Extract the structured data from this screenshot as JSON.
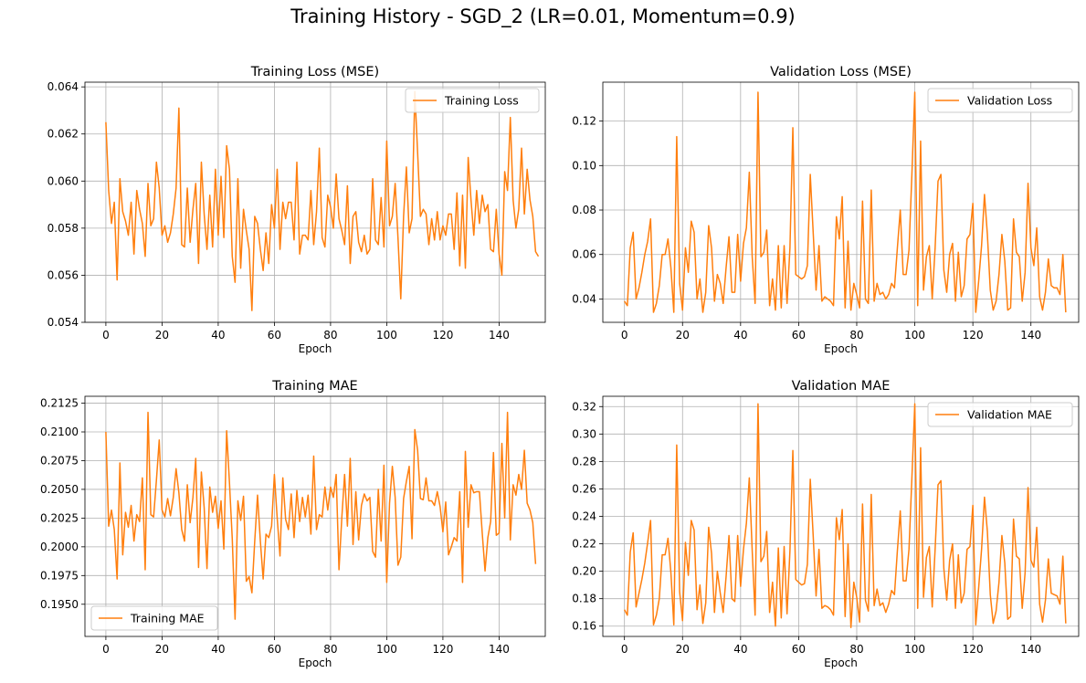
{
  "figure": {
    "suptitle": "Training History - SGD_2 (LR=0.01, Momentum=0.9)"
  },
  "colors": {
    "series": "#ff7f0e",
    "grid": "#b0b0b0",
    "axis": "#000000"
  },
  "chart_data": [
    {
      "type": "line",
      "title": "Training Loss (MSE)",
      "xlabel": "Epoch",
      "ylabel": "",
      "xlim": [
        -7.45,
        156.45
      ],
      "ylim": [
        0.054,
        0.0642
      ],
      "xticks": [
        0,
        20,
        40,
        60,
        80,
        100,
        120,
        140
      ],
      "yticks": [
        0.054,
        0.056,
        0.058,
        0.06,
        0.062,
        0.064
      ],
      "ytick_labels": [
        "0.054",
        "0.056",
        "0.058",
        "0.060",
        "0.062",
        "0.064"
      ],
      "grid": true,
      "legend": "upper right",
      "series": [
        {
          "name": "Training Loss",
          "values": [
            0.0625,
            0.0596,
            0.0582,
            0.0591,
            0.0558,
            0.0601,
            0.0587,
            0.0583,
            0.0577,
            0.0591,
            0.0569,
            0.0596,
            0.0588,
            0.0582,
            0.0568,
            0.0599,
            0.0581,
            0.0584,
            0.0608,
            0.0597,
            0.0577,
            0.0581,
            0.0574,
            0.0578,
            0.0586,
            0.0597,
            0.0631,
            0.0573,
            0.0572,
            0.0597,
            0.0574,
            0.0588,
            0.0599,
            0.0565,
            0.0608,
            0.0586,
            0.0571,
            0.0594,
            0.0572,
            0.0605,
            0.0577,
            0.0602,
            0.0576,
            0.0615,
            0.0605,
            0.0568,
            0.0557,
            0.0601,
            0.0563,
            0.0588,
            0.0579,
            0.0571,
            0.0545,
            0.0585,
            0.0582,
            0.0571,
            0.0562,
            0.0578,
            0.0565,
            0.059,
            0.058,
            0.0605,
            0.0571,
            0.0591,
            0.0584,
            0.0591,
            0.0591,
            0.0575,
            0.0608,
            0.0569,
            0.0577,
            0.0577,
            0.0575,
            0.0596,
            0.0573,
            0.0587,
            0.0614,
            0.0576,
            0.0572,
            0.0594,
            0.0589,
            0.058,
            0.0603,
            0.0584,
            0.0579,
            0.0573,
            0.0598,
            0.0565,
            0.0585,
            0.0587,
            0.0574,
            0.057,
            0.0577,
            0.0569,
            0.0571,
            0.0601,
            0.0575,
            0.0573,
            0.0593,
            0.0572,
            0.0617,
            0.0581,
            0.0585,
            0.0599,
            0.0576,
            0.055,
            0.0585,
            0.0606,
            0.0578,
            0.0584,
            0.0638,
            0.0612,
            0.0585,
            0.0588,
            0.0586,
            0.0573,
            0.0584,
            0.0575,
            0.0587,
            0.0575,
            0.0581,
            0.0577,
            0.0586,
            0.0586,
            0.0571,
            0.0595,
            0.0564,
            0.0594,
            0.0563,
            0.061,
            0.0592,
            0.0577,
            0.0596,
            0.0582,
            0.0594,
            0.0587,
            0.059,
            0.0571,
            0.057,
            0.0588,
            0.0569,
            0.056,
            0.0604,
            0.0596,
            0.0627,
            0.0592,
            0.058,
            0.0588,
            0.0614,
            0.0586,
            0.0605,
            0.0592,
            0.0585,
            0.057,
            0.0568
          ]
        }
      ]
    },
    {
      "type": "line",
      "title": "Validation Loss (MSE)",
      "xlabel": "Epoch",
      "ylabel": "",
      "xlim": [
        -7.45,
        156.45
      ],
      "ylim": [
        0.0295,
        0.1375
      ],
      "xticks": [
        0,
        20,
        40,
        60,
        80,
        100,
        120,
        140
      ],
      "yticks": [
        0.04,
        0.06,
        0.08,
        0.1,
        0.12
      ],
      "ytick_labels": [
        "0.04",
        "0.06",
        "0.08",
        "0.10",
        "0.12"
      ],
      "grid": true,
      "legend": "upper right",
      "series": [
        {
          "name": "Validation Loss",
          "values": [
            0.039,
            0.037,
            0.063,
            0.07,
            0.04,
            0.045,
            0.052,
            0.06,
            0.066,
            0.076,
            0.034,
            0.038,
            0.046,
            0.06,
            0.06,
            0.067,
            0.054,
            0.034,
            0.113,
            0.047,
            0.035,
            0.063,
            0.052,
            0.075,
            0.07,
            0.04,
            0.049,
            0.034,
            0.043,
            0.073,
            0.063,
            0.039,
            0.051,
            0.047,
            0.038,
            0.054,
            0.068,
            0.043,
            0.043,
            0.069,
            0.048,
            0.065,
            0.072,
            0.097,
            0.059,
            0.038,
            0.133,
            0.059,
            0.061,
            0.071,
            0.037,
            0.049,
            0.035,
            0.064,
            0.036,
            0.064,
            0.038,
            0.063,
            0.117,
            0.051,
            0.05,
            0.049,
            0.05,
            0.055,
            0.096,
            0.07,
            0.044,
            0.064,
            0.039,
            0.041,
            0.04,
            0.039,
            0.037,
            0.077,
            0.067,
            0.086,
            0.036,
            0.066,
            0.035,
            0.047,
            0.042,
            0.036,
            0.084,
            0.04,
            0.038,
            0.089,
            0.039,
            0.047,
            0.042,
            0.043,
            0.04,
            0.042,
            0.047,
            0.045,
            0.063,
            0.08,
            0.051,
            0.051,
            0.062,
            0.096,
            0.133,
            0.037,
            0.111,
            0.044,
            0.059,
            0.064,
            0.04,
            0.063,
            0.093,
            0.096,
            0.053,
            0.043,
            0.06,
            0.065,
            0.039,
            0.061,
            0.041,
            0.046,
            0.067,
            0.069,
            0.083,
            0.034,
            0.048,
            0.064,
            0.087,
            0.069,
            0.044,
            0.035,
            0.039,
            0.051,
            0.069,
            0.057,
            0.035,
            0.036,
            0.076,
            0.061,
            0.059,
            0.039,
            0.052,
            0.092,
            0.063,
            0.055,
            0.072,
            0.041,
            0.035,
            0.043,
            0.058,
            0.046,
            0.045,
            0.045,
            0.042,
            0.06,
            0.034
          ]
        }
      ]
    },
    {
      "type": "line",
      "title": "Training MAE",
      "xlabel": "Epoch",
      "ylabel": "",
      "xlim": [
        -7.45,
        156.45
      ],
      "ylim": [
        0.1922,
        0.2131
      ],
      "xticks": [
        0,
        20,
        40,
        60,
        80,
        100,
        120,
        140
      ],
      "yticks": [
        0.195,
        0.1975,
        0.2,
        0.2025,
        0.205,
        0.2075,
        0.21,
        0.2125
      ],
      "ytick_labels": [
        "0.1950",
        "0.1975",
        "0.2000",
        "0.2025",
        "0.2050",
        "0.2075",
        "0.2100",
        "0.2125"
      ],
      "grid": true,
      "legend": "lower left",
      "series": [
        {
          "name": "Training MAE",
          "values": [
            0.21,
            0.2018,
            0.2032,
            0.2015,
            0.1972,
            0.2073,
            0.1993,
            0.203,
            0.2017,
            0.2036,
            0.2005,
            0.2028,
            0.2022,
            0.206,
            0.198,
            0.2117,
            0.2028,
            0.2026,
            0.2058,
            0.2093,
            0.2032,
            0.2026,
            0.2042,
            0.2027,
            0.2043,
            0.2068,
            0.2047,
            0.2015,
            0.2005,
            0.2054,
            0.2021,
            0.2043,
            0.2077,
            0.1982,
            0.2065,
            0.2034,
            0.1981,
            0.2052,
            0.203,
            0.2044,
            0.2016,
            0.204,
            0.1998,
            0.2101,
            0.2056,
            0.2007,
            0.1937,
            0.204,
            0.2023,
            0.2044,
            0.197,
            0.1974,
            0.196,
            0.2005,
            0.2045,
            0.2005,
            0.1972,
            0.2011,
            0.2008,
            0.2018,
            0.2063,
            0.2025,
            0.1992,
            0.206,
            0.2024,
            0.2015,
            0.2046,
            0.2008,
            0.2049,
            0.2022,
            0.2043,
            0.2026,
            0.2045,
            0.2011,
            0.2079,
            0.2015,
            0.2028,
            0.2026,
            0.2052,
            0.2032,
            0.2052,
            0.2043,
            0.2063,
            0.198,
            0.2025,
            0.2063,
            0.2018,
            0.2077,
            0.2002,
            0.2048,
            0.2006,
            0.2036,
            0.2046,
            0.204,
            0.2043,
            0.1996,
            0.1991,
            0.205,
            0.2005,
            0.2071,
            0.1969,
            0.2038,
            0.207,
            0.2043,
            0.1984,
            0.1991,
            0.2042,
            0.2057,
            0.207,
            0.2007,
            0.2102,
            0.2084,
            0.2042,
            0.2041,
            0.206,
            0.204,
            0.204,
            0.2036,
            0.2048,
            0.2035,
            0.2013,
            0.2039,
            0.1993,
            0.2,
            0.2008,
            0.2005,
            0.2048,
            0.1969,
            0.2083,
            0.2017,
            0.2054,
            0.2047,
            0.2048,
            0.2048,
            0.2012,
            0.1979,
            0.2008,
            0.2022,
            0.2082,
            0.201,
            0.2012,
            0.209,
            0.2025,
            0.2117,
            0.2006,
            0.2054,
            0.2045,
            0.2063,
            0.205,
            0.2084,
            0.2038,
            0.2032,
            0.2021,
            0.1985
          ]
        }
      ]
    },
    {
      "type": "line",
      "title": "Validation MAE",
      "xlabel": "Epoch",
      "ylabel": "",
      "xlim": [
        -7.45,
        156.45
      ],
      "ylim": [
        0.1525,
        0.3275
      ],
      "xticks": [
        0,
        20,
        40,
        60,
        80,
        100,
        120,
        140
      ],
      "yticks": [
        0.16,
        0.18,
        0.2,
        0.22,
        0.24,
        0.26,
        0.28,
        0.3,
        0.32
      ],
      "ytick_labels": [
        "0.16",
        "0.18",
        "0.20",
        "0.22",
        "0.24",
        "0.26",
        "0.28",
        "0.30",
        "0.32"
      ],
      "grid": true,
      "legend": "upper right",
      "series": [
        {
          "name": "Validation MAE",
          "values": [
            0.172,
            0.168,
            0.214,
            0.228,
            0.174,
            0.184,
            0.194,
            0.206,
            0.221,
            0.237,
            0.161,
            0.168,
            0.18,
            0.212,
            0.212,
            0.224,
            0.199,
            0.161,
            0.292,
            0.185,
            0.164,
            0.221,
            0.197,
            0.237,
            0.23,
            0.172,
            0.19,
            0.162,
            0.177,
            0.232,
            0.213,
            0.17,
            0.2,
            0.184,
            0.17,
            0.196,
            0.226,
            0.18,
            0.178,
            0.226,
            0.189,
            0.216,
            0.235,
            0.268,
            0.215,
            0.168,
            0.322,
            0.207,
            0.211,
            0.229,
            0.17,
            0.192,
            0.16,
            0.217,
            0.166,
            0.218,
            0.169,
            0.215,
            0.288,
            0.194,
            0.192,
            0.19,
            0.191,
            0.205,
            0.267,
            0.226,
            0.182,
            0.216,
            0.173,
            0.175,
            0.174,
            0.172,
            0.168,
            0.239,
            0.223,
            0.245,
            0.167,
            0.22,
            0.159,
            0.192,
            0.181,
            0.163,
            0.249,
            0.179,
            0.171,
            0.256,
            0.175,
            0.187,
            0.175,
            0.177,
            0.17,
            0.176,
            0.186,
            0.183,
            0.215,
            0.244,
            0.193,
            0.193,
            0.216,
            0.268,
            0.322,
            0.173,
            0.29,
            0.181,
            0.21,
            0.218,
            0.174,
            0.216,
            0.263,
            0.266,
            0.202,
            0.179,
            0.208,
            0.22,
            0.173,
            0.212,
            0.177,
            0.184,
            0.216,
            0.218,
            0.248,
            0.161,
            0.188,
            0.216,
            0.254,
            0.229,
            0.183,
            0.162,
            0.171,
            0.192,
            0.226,
            0.206,
            0.165,
            0.167,
            0.238,
            0.211,
            0.209,
            0.173,
            0.199,
            0.261,
            0.208,
            0.203,
            0.232,
            0.176,
            0.163,
            0.179,
            0.209,
            0.184,
            0.183,
            0.182,
            0.176,
            0.211,
            0.162
          ]
        }
      ]
    }
  ]
}
